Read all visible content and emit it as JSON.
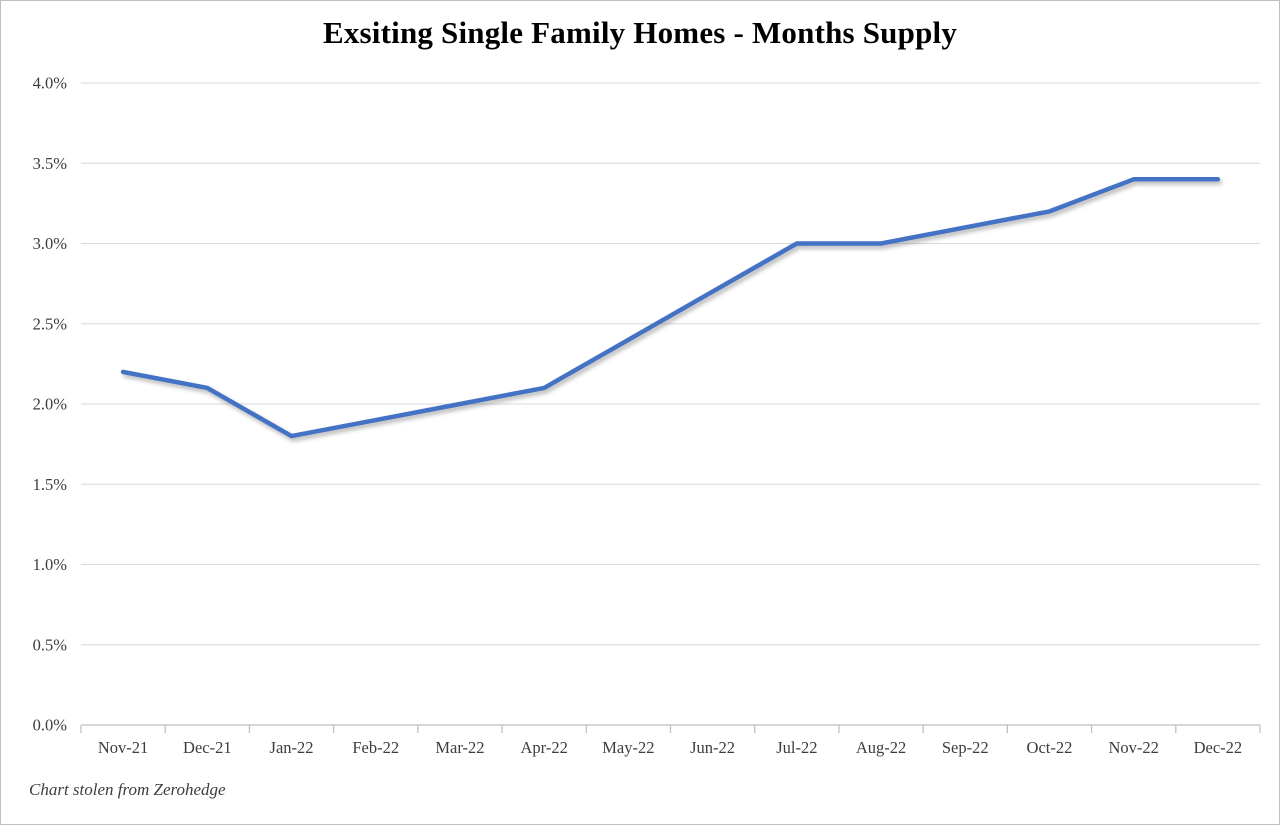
{
  "page": {
    "title": "Exsiting Single Family Homes - Months Supply",
    "footnote": "Chart stolen from Zerohedge"
  },
  "chart_data": {
    "type": "line",
    "title": "Exsiting Single Family Homes - Months Supply",
    "categories": [
      "Nov-21",
      "Dec-21",
      "Jan-22",
      "Feb-22",
      "Mar-22",
      "Apr-22",
      "May-22",
      "Jun-22",
      "Jul-22",
      "Aug-22",
      "Sep-22",
      "Oct-22",
      "Nov-22",
      "Dec-22"
    ],
    "series": [
      {
        "name": "Months Supply",
        "values": [
          2.2,
          2.1,
          1.8,
          1.9,
          2.0,
          2.1,
          2.4,
          2.7,
          3.0,
          3.0,
          3.1,
          3.2,
          3.4,
          3.4
        ]
      }
    ],
    "xlabel": "",
    "ylabel": "",
    "ylim": [
      0,
      4
    ],
    "ytick_step": 0.5,
    "ytick_labels": [
      "0.0%",
      "0.5%",
      "1.0%",
      "1.5%",
      "2.0%",
      "2.5%",
      "3.0%",
      "3.5%",
      "4.0%"
    ],
    "grid": "horizontal",
    "legend": "none",
    "annotations": [
      "Chart stolen from Zerohedge"
    ],
    "colors": {
      "line": "#4472C4",
      "gridline": "#D9D9D9",
      "axis": "#BFBFBF",
      "tick_text": "#3d3d3d",
      "title_text": "#000000",
      "background": "#FFFFFF",
      "border": "#BFBFBF"
    }
  }
}
